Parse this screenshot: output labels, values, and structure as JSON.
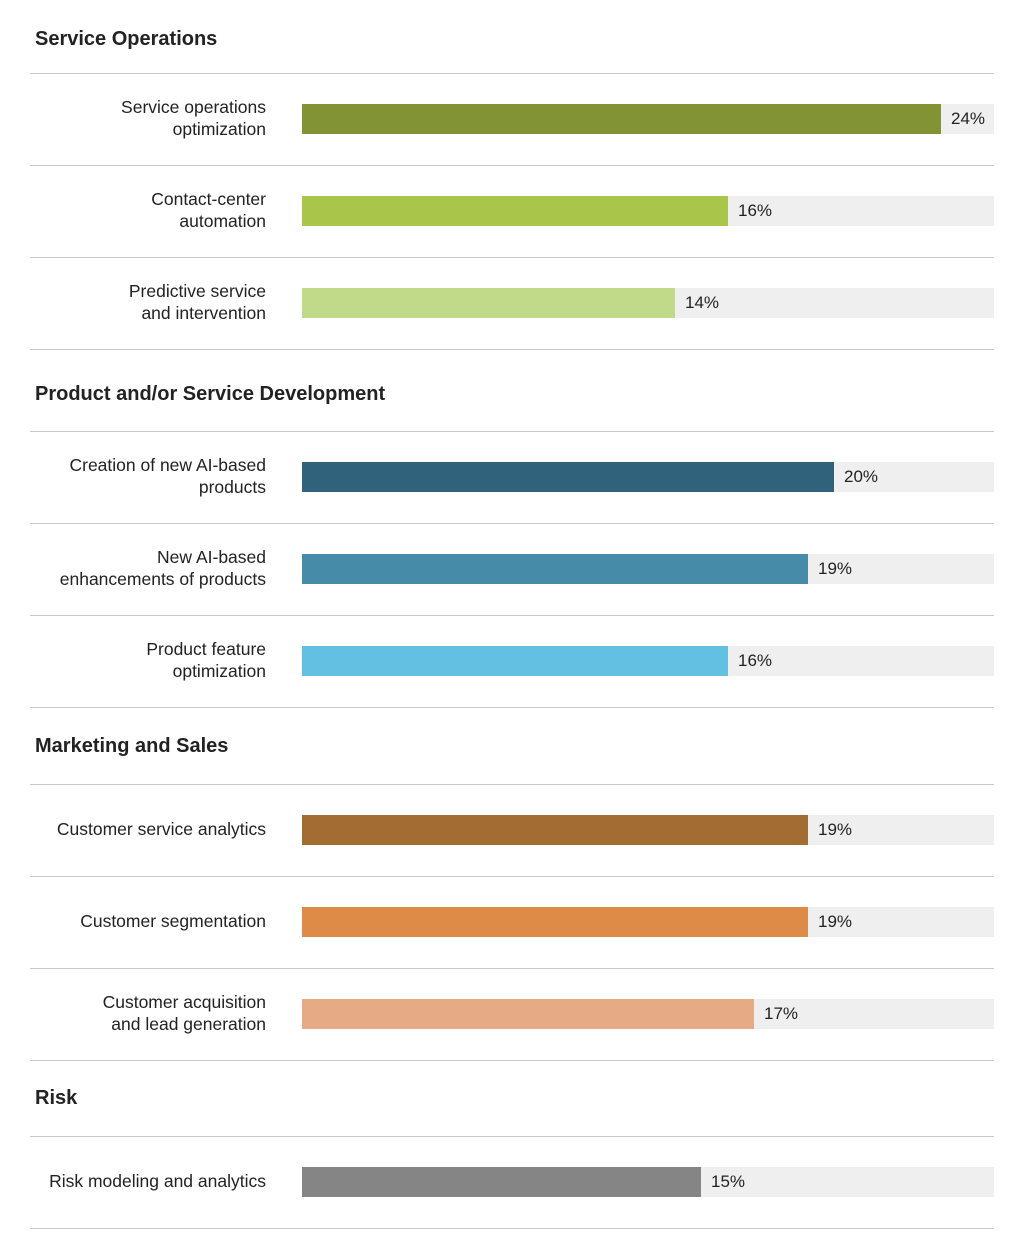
{
  "chart_data": {
    "type": "bar",
    "orientation": "horizontal",
    "unit": "%",
    "groups": [
      {
        "name": "Service Operations",
        "items": [
          {
            "label": [
              "Service operations",
              "optimization"
            ],
            "value": 24,
            "display": "24%",
            "color": "#819334"
          },
          {
            "label": [
              "Contact-center",
              "automation"
            ],
            "value": 16,
            "display": "16%",
            "color": "#a7c64a"
          },
          {
            "label": [
              "Predictive service",
              "and intervention"
            ],
            "value": 14,
            "display": "14%",
            "color": "#c1da8a"
          }
        ]
      },
      {
        "name": "Product and/or Service Development",
        "items": [
          {
            "label": [
              "Creation of new AI-based",
              "products"
            ],
            "value": 20,
            "display": "20%",
            "color": "#30637b"
          },
          {
            "label": [
              "New AI-based",
              "enhancements of products"
            ],
            "value": 19,
            "display": "19%",
            "color": "#468ca9"
          },
          {
            "label": [
              "Product feature",
              "optimization"
            ],
            "value": 16,
            "display": "16%",
            "color": "#62c0e3"
          }
        ]
      },
      {
        "name": "Marketing and Sales",
        "items": [
          {
            "label": [
              "Customer service analytics"
            ],
            "value": 19,
            "display": "19%",
            "color": "#a26d32"
          },
          {
            "label": [
              "Customer segmentation"
            ],
            "value": 19,
            "display": "19%",
            "color": "#de8b48"
          },
          {
            "label": [
              "Customer acquisition",
              "and lead generation"
            ],
            "value": 17,
            "display": "17%",
            "color": "#e6ab84"
          }
        ]
      },
      {
        "name": "Risk",
        "items": [
          {
            "label": [
              "Risk modeling and analytics"
            ],
            "value": 15,
            "display": "15%",
            "color": "#858585"
          }
        ]
      }
    ],
    "track_color": "#efefef"
  }
}
